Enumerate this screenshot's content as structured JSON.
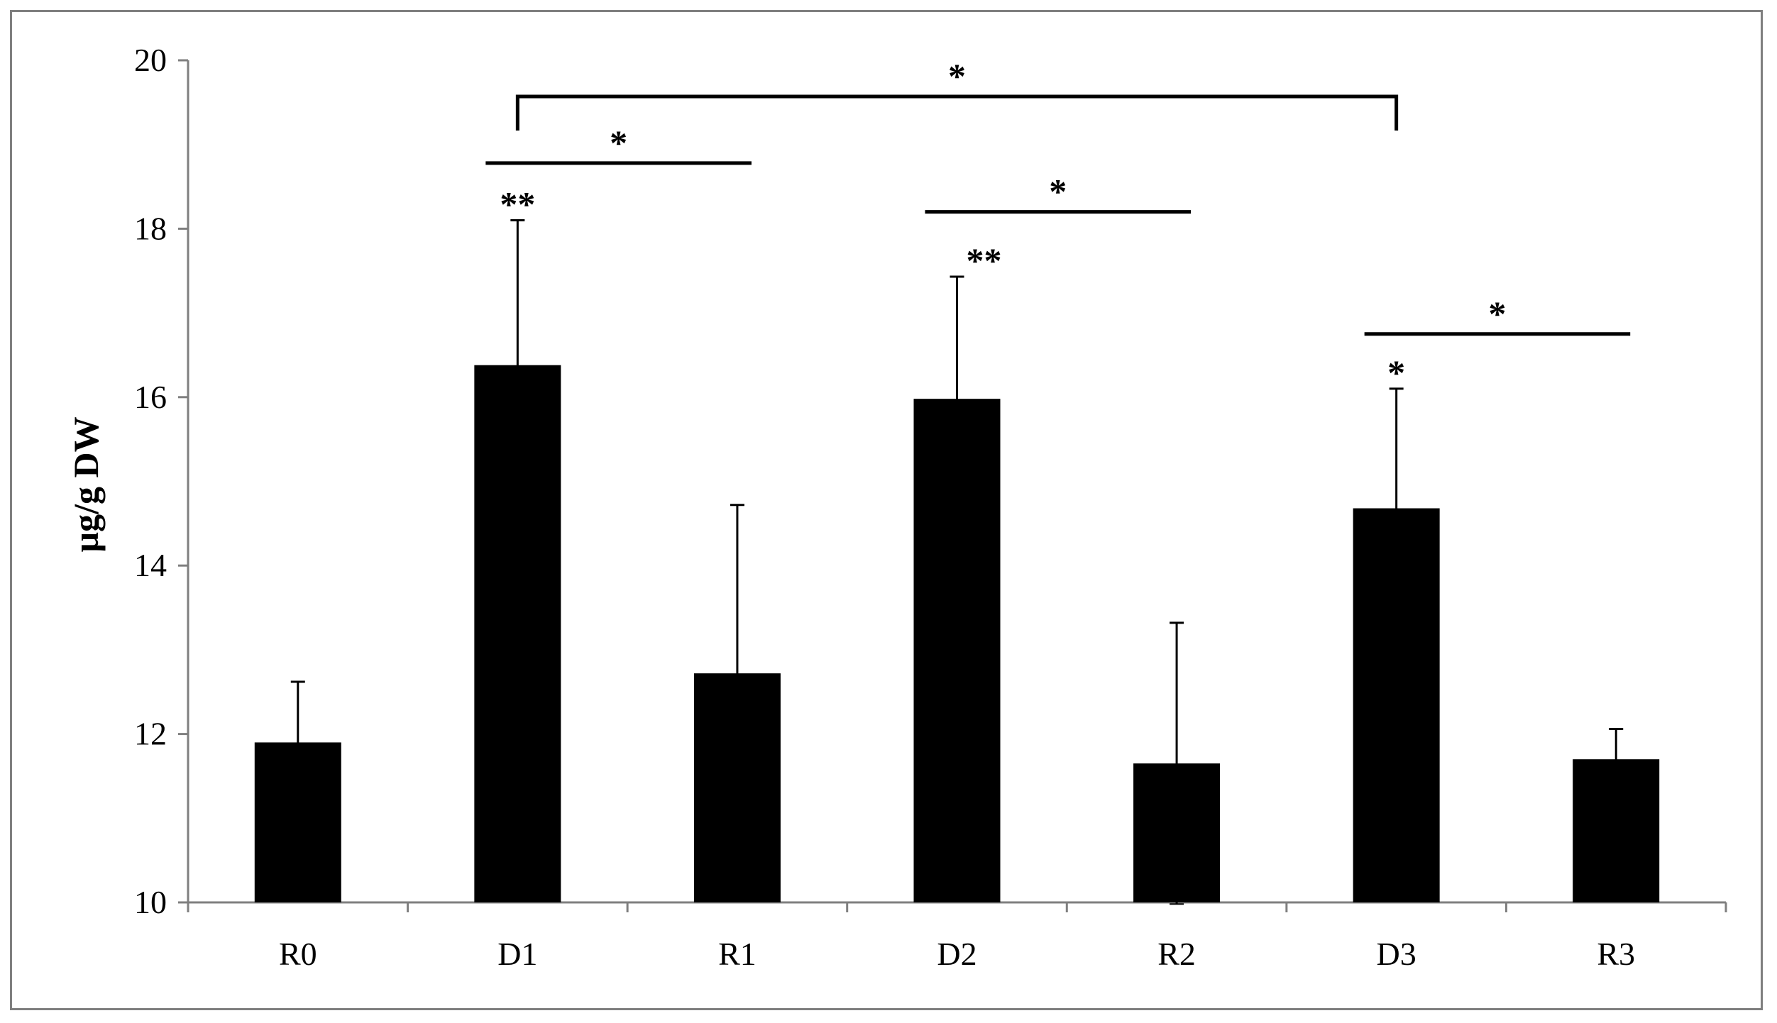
{
  "chart_data": {
    "type": "bar",
    "title": "",
    "xlabel": "",
    "ylabel": "µg/g DW",
    "ylim": [
      10,
      20
    ],
    "yticks": [
      10,
      12,
      14,
      16,
      18,
      20
    ],
    "grid": false,
    "legend": "none",
    "categories": [
      "R0",
      "D1",
      "R1",
      "D2",
      "R2",
      "D3",
      "R3"
    ],
    "values": [
      11.9,
      16.38,
      12.72,
      15.98,
      11.65,
      14.68,
      11.7
    ],
    "error": [
      0.72,
      1.72,
      2.0,
      1.45,
      1.67,
      1.42,
      0.36
    ],
    "point_labels": [
      "",
      "**",
      "",
      "**",
      "",
      "*",
      ""
    ],
    "comparisons": [
      {
        "from": "D1",
        "to": "R1",
        "label": "*",
        "y": 18.78,
        "style": "line"
      },
      {
        "from": "D2",
        "to": "R2",
        "label": "*",
        "y": 18.2,
        "style": "line"
      },
      {
        "from": "D3",
        "to": "R3",
        "label": "*",
        "y": 16.75,
        "style": "line"
      },
      {
        "from": "D1",
        "to": "D3",
        "label": "*",
        "y": 19.57,
        "style": "bracket"
      }
    ],
    "colors": {
      "bar": "#000000",
      "axis": "#7f7f7f",
      "frame": "#7f7f7f"
    }
  }
}
